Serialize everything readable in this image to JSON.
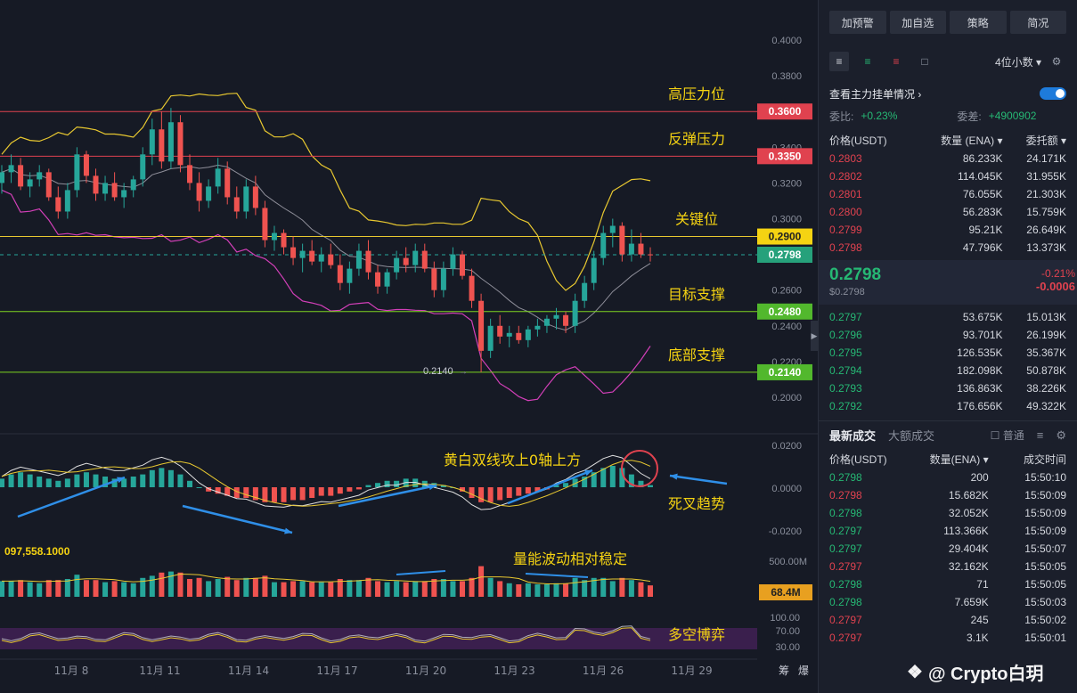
{
  "chart_data": {
    "type": "candlestick",
    "price_axis": {
      "min": 0.2,
      "max": 0.4,
      "ticks": [
        "0.4000",
        "0.3800",
        "0.3600",
        "0.3400",
        "0.3200",
        "0.3000",
        "0.2800",
        "0.2600",
        "0.2400",
        "0.2200",
        "0.2000"
      ]
    },
    "x_ticks": [
      "11月 8",
      "11月 11",
      "11月 14",
      "11月 17",
      "11月 20",
      "11月 23",
      "11月 26",
      "11月 29"
    ],
    "levels": [
      {
        "price": 0.36,
        "label": "0.3600",
        "annotation": "高压力位",
        "color": "#e0424f",
        "tag_bg": "#e0424f"
      },
      {
        "price": 0.335,
        "label": "0.3350",
        "annotation": "反弹压力",
        "color": "#e0424f",
        "tag_bg": "#e0424f"
      },
      {
        "price": 0.29,
        "label": "0.2900",
        "annotation": "关键位",
        "color": "#e8c830",
        "tag_bg": "#f5d312"
      },
      {
        "price": 0.2798,
        "label": "0.2798",
        "annotation": "",
        "color": "#26a69a",
        "tag_bg": "#26a17b"
      },
      {
        "price": 0.248,
        "label": "0.2480",
        "annotation": "目标支撑",
        "color": "#7ed321",
        "tag_bg": "#52b82d"
      },
      {
        "price": 0.214,
        "label": "0.2140",
        "annotation": "底部支撑",
        "color": "#7ed321",
        "tag_bg": "#52b82d"
      }
    ],
    "low_marker": "0.2140",
    "candles": [
      [
        0.32,
        0.33,
        0.314,
        0.326
      ],
      [
        0.326,
        0.336,
        0.32,
        0.33
      ],
      [
        0.33,
        0.334,
        0.316,
        0.318
      ],
      [
        0.318,
        0.326,
        0.312,
        0.322
      ],
      [
        0.322,
        0.33,
        0.318,
        0.326
      ],
      [
        0.326,
        0.328,
        0.31,
        0.312
      ],
      [
        0.312,
        0.318,
        0.3,
        0.304
      ],
      [
        0.304,
        0.32,
        0.3,
        0.316
      ],
      [
        0.316,
        0.34,
        0.312,
        0.336
      ],
      [
        0.336,
        0.338,
        0.32,
        0.324
      ],
      [
        0.324,
        0.328,
        0.31,
        0.314
      ],
      [
        0.314,
        0.324,
        0.31,
        0.32
      ],
      [
        0.32,
        0.326,
        0.31,
        0.312
      ],
      [
        0.312,
        0.32,
        0.306,
        0.316
      ],
      [
        0.316,
        0.324,
        0.312,
        0.322
      ],
      [
        0.322,
        0.34,
        0.318,
        0.336
      ],
      [
        0.336,
        0.356,
        0.33,
        0.35
      ],
      [
        0.35,
        0.36,
        0.328,
        0.332
      ],
      [
        0.332,
        0.362,
        0.328,
        0.354
      ],
      [
        0.354,
        0.358,
        0.326,
        0.33
      ],
      [
        0.33,
        0.336,
        0.316,
        0.32
      ],
      [
        0.32,
        0.326,
        0.304,
        0.31
      ],
      [
        0.31,
        0.322,
        0.306,
        0.318
      ],
      [
        0.318,
        0.334,
        0.314,
        0.328
      ],
      [
        0.328,
        0.332,
        0.308,
        0.312
      ],
      [
        0.312,
        0.318,
        0.3,
        0.304
      ],
      [
        0.304,
        0.322,
        0.3,
        0.318
      ],
      [
        0.318,
        0.324,
        0.302,
        0.306
      ],
      [
        0.306,
        0.31,
        0.284,
        0.288
      ],
      [
        0.288,
        0.296,
        0.282,
        0.292
      ],
      [
        0.292,
        0.294,
        0.28,
        0.284
      ],
      [
        0.284,
        0.29,
        0.274,
        0.278
      ],
      [
        0.278,
        0.286,
        0.27,
        0.282
      ],
      [
        0.282,
        0.288,
        0.274,
        0.276
      ],
      [
        0.276,
        0.284,
        0.27,
        0.28
      ],
      [
        0.28,
        0.286,
        0.272,
        0.274
      ],
      [
        0.274,
        0.28,
        0.26,
        0.264
      ],
      [
        0.264,
        0.276,
        0.258,
        0.272
      ],
      [
        0.272,
        0.286,
        0.268,
        0.282
      ],
      [
        0.282,
        0.288,
        0.266,
        0.27
      ],
      [
        0.27,
        0.274,
        0.258,
        0.262
      ],
      [
        0.262,
        0.272,
        0.258,
        0.27
      ],
      [
        0.27,
        0.282,
        0.266,
        0.278
      ],
      [
        0.278,
        0.284,
        0.27,
        0.274
      ],
      [
        0.274,
        0.286,
        0.27,
        0.282
      ],
      [
        0.282,
        0.286,
        0.27,
        0.272
      ],
      [
        0.272,
        0.276,
        0.256,
        0.26
      ],
      [
        0.26,
        0.276,
        0.256,
        0.272
      ],
      [
        0.272,
        0.284,
        0.268,
        0.28
      ],
      [
        0.28,
        0.282,
        0.266,
        0.268
      ],
      [
        0.268,
        0.272,
        0.25,
        0.254
      ],
      [
        0.254,
        0.258,
        0.214,
        0.226
      ],
      [
        0.226,
        0.244,
        0.222,
        0.24
      ],
      [
        0.24,
        0.246,
        0.23,
        0.234
      ],
      [
        0.234,
        0.24,
        0.228,
        0.236
      ],
      [
        0.236,
        0.24,
        0.23,
        0.232
      ],
      [
        0.232,
        0.24,
        0.228,
        0.238
      ],
      [
        0.238,
        0.244,
        0.234,
        0.24
      ],
      [
        0.24,
        0.246,
        0.236,
        0.244
      ],
      [
        0.244,
        0.25,
        0.238,
        0.246
      ],
      [
        0.246,
        0.248,
        0.236,
        0.24
      ],
      [
        0.24,
        0.258,
        0.236,
        0.254
      ],
      [
        0.254,
        0.268,
        0.25,
        0.264
      ],
      [
        0.264,
        0.282,
        0.26,
        0.278
      ],
      [
        0.278,
        0.296,
        0.274,
        0.292
      ],
      [
        0.292,
        0.3,
        0.284,
        0.296
      ],
      [
        0.296,
        0.298,
        0.276,
        0.28
      ],
      [
        0.28,
        0.294,
        0.276,
        0.286
      ],
      [
        0.286,
        0.292,
        0.278,
        0.28
      ],
      [
        0.28,
        0.284,
        0.276,
        0.2798
      ]
    ],
    "macd": {
      "axis_ticks": [
        "0.0200",
        "0.0000",
        "-0.0200"
      ],
      "annotation_top": "黄白双线攻上0轴上方",
      "annotation_right": "死叉趋势",
      "hist": [
        0.004,
        0.006,
        0.007,
        0.006,
        0.005,
        0.004,
        0.003,
        0.004,
        0.006,
        0.007,
        0.006,
        0.005,
        0.004,
        0.004,
        0.005,
        0.006,
        0.008,
        0.009,
        0.008,
        0.006,
        0.003,
        0.0,
        -0.002,
        -0.003,
        -0.004,
        -0.005,
        -0.005,
        -0.006,
        -0.007,
        -0.007,
        -0.007,
        -0.006,
        -0.006,
        -0.005,
        -0.004,
        -0.004,
        -0.003,
        -0.002,
        -0.001,
        0.001,
        0.002,
        0.003,
        0.003,
        0.004,
        0.004,
        0.003,
        0.002,
        0.001,
        0.0,
        -0.002,
        -0.005,
        -0.007,
        -0.007,
        -0.006,
        -0.005,
        -0.004,
        -0.003,
        -0.002,
        -0.001,
        0.001,
        0.002,
        0.004,
        0.005,
        0.007,
        0.009,
        0.01,
        0.009,
        0.006,
        0.003,
        0.001
      ]
    },
    "volume": {
      "axis_ticks": [
        "500.00M"
      ],
      "tag": "68.4M",
      "left_readout": "097,558.1000",
      "annotation": "量能波动相对稳定"
    },
    "rsi": {
      "axis_ticks": [
        "100.00",
        "70.00",
        "30.00"
      ],
      "annotation": "多空博弈"
    },
    "bottom_right": [
      "筹",
      "爆"
    ]
  },
  "panel": {
    "buttons": [
      "加预警",
      "加自选",
      "策略",
      "简况"
    ],
    "decimals": "4位小数",
    "watch_label": "查看主力挂单情况",
    "ratio_label": "委比:",
    "ratio_value": "+0.23%",
    "diff_label": "委差:",
    "diff_value": "+4900902",
    "ob_headers": [
      "价格(USDT)",
      "数量 (ENA)",
      "委托额"
    ],
    "asks": [
      [
        "0.2803",
        "86.233K",
        "24.171K"
      ],
      [
        "0.2802",
        "114.045K",
        "31.955K"
      ],
      [
        "0.2801",
        "76.055K",
        "21.303K"
      ],
      [
        "0.2800",
        "56.283K",
        "15.759K"
      ],
      [
        "0.2799",
        "95.21K",
        "26.649K"
      ],
      [
        "0.2798",
        "47.796K",
        "13.373K"
      ]
    ],
    "mid_price": "0.2798",
    "mid_sub": "$0.2798",
    "mid_change_pct": "-0.21%",
    "mid_change_abs": "-0.0006",
    "bids": [
      [
        "0.2797",
        "53.675K",
        "15.013K"
      ],
      [
        "0.2796",
        "93.701K",
        "26.199K"
      ],
      [
        "0.2795",
        "126.535K",
        "35.367K"
      ],
      [
        "0.2794",
        "182.098K",
        "50.878K"
      ],
      [
        "0.2793",
        "136.863K",
        "38.226K"
      ],
      [
        "0.2792",
        "176.656K",
        "49.322K"
      ]
    ],
    "trade_tabs": [
      "最新成交",
      "大额成交"
    ],
    "trade_option": "普通",
    "tr_headers": [
      "价格(USDT)",
      "数量(ENA)",
      "成交时间"
    ],
    "trades": [
      [
        "0.2798",
        "200",
        "15:50:10",
        "g"
      ],
      [
        "0.2798",
        "15.682K",
        "15:50:09",
        "r"
      ],
      [
        "0.2798",
        "32.052K",
        "15:50:09",
        "g"
      ],
      [
        "0.2797",
        "113.366K",
        "15:50:09",
        "g"
      ],
      [
        "0.2797",
        "29.404K",
        "15:50:07",
        "g"
      ],
      [
        "0.2797",
        "32.162K",
        "15:50:05",
        "r"
      ],
      [
        "0.2798",
        "71",
        "15:50:05",
        "g"
      ],
      [
        "0.2798",
        "7.659K",
        "15:50:03",
        "g"
      ],
      [
        "0.2797",
        "245",
        "15:50:02",
        "r"
      ],
      [
        "0.2797",
        "3.1K",
        "15:50:01",
        "r"
      ]
    ],
    "watermark": "@ Crypto白玥"
  }
}
